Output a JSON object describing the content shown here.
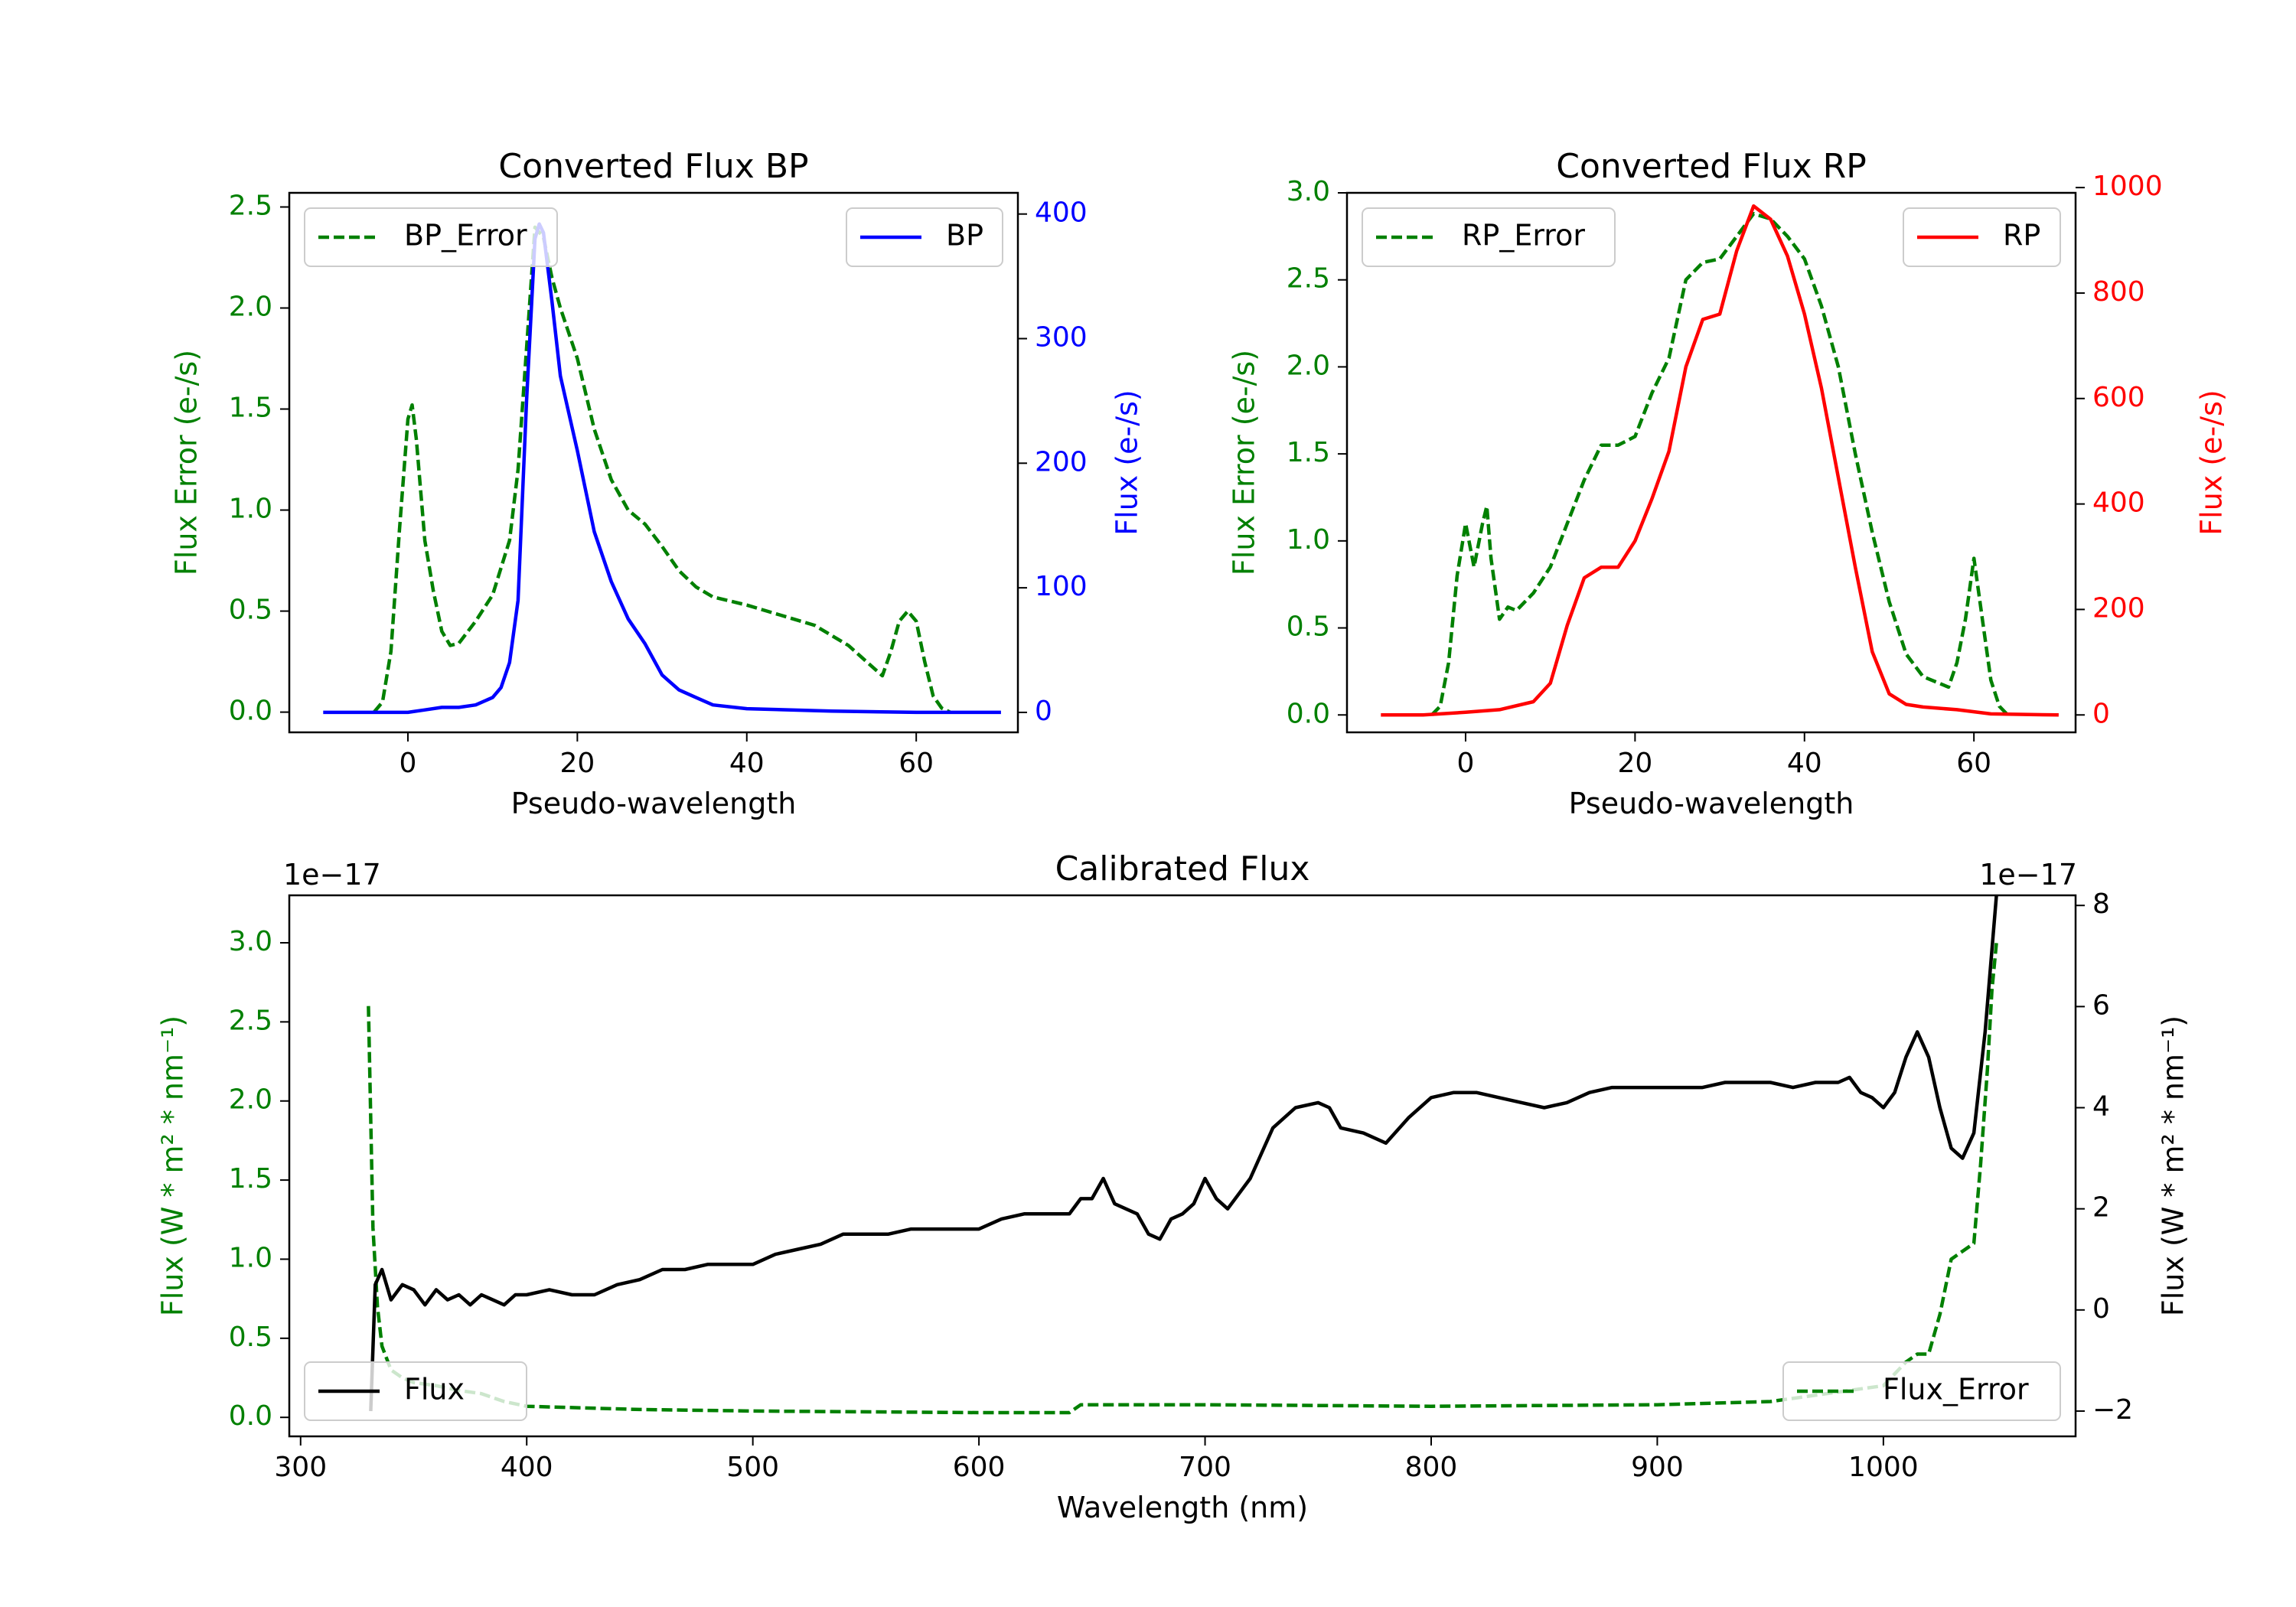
{
  "colors": {
    "error": "#008000",
    "bp": "#0000ff",
    "rp": "#ff0000",
    "flux": "#000000"
  },
  "chart_data": [
    {
      "type": "line",
      "title": "Converted Flux BP",
      "xlabel": "Pseudo-wavelength",
      "ylabel_left": "Flux Error (e-/s)",
      "ylabel_right": "Flux (e-/s)",
      "xlim": [
        -14,
        72
      ],
      "ylim_left": [
        -0.1,
        2.57
      ],
      "ylim_right": [
        -16,
        417
      ],
      "xticks": [
        0,
        20,
        40,
        60
      ],
      "xtick_labels": [
        "0",
        "20",
        "40",
        "60"
      ],
      "yticks_left": [
        0.0,
        0.5,
        1.0,
        1.5,
        2.0,
        2.5
      ],
      "ytick_labels_left": [
        "0.0",
        "0.5",
        "1.0",
        "1.5",
        "2.0",
        "2.5"
      ],
      "yticks_right": [
        0,
        100,
        200,
        300,
        400
      ],
      "ytick_labels_right": [
        "0",
        "100",
        "200",
        "300",
        "400"
      ],
      "series": [
        {
          "name": "BP_Error",
          "axis": "left",
          "style": "dashed",
          "color": "#008000",
          "x": [
            -4,
            -3,
            -2,
            -1,
            0,
            0.5,
            1,
            2,
            3,
            4,
            5,
            6,
            8,
            10,
            12,
            13,
            14,
            15,
            16,
            17,
            18,
            20,
            22,
            24,
            26,
            28,
            30,
            32,
            34,
            36,
            40,
            44,
            48,
            52,
            56,
            57,
            58,
            59,
            60,
            61,
            62,
            63,
            64
          ],
          "y": [
            0.0,
            0.05,
            0.3,
            0.9,
            1.45,
            1.52,
            1.35,
            0.85,
            0.6,
            0.4,
            0.33,
            0.34,
            0.45,
            0.58,
            0.85,
            1.2,
            1.8,
            2.4,
            2.35,
            2.15,
            2.0,
            1.75,
            1.4,
            1.15,
            1.0,
            0.93,
            0.82,
            0.7,
            0.62,
            0.57,
            0.53,
            0.48,
            0.43,
            0.33,
            0.18,
            0.3,
            0.45,
            0.5,
            0.45,
            0.25,
            0.08,
            0.02,
            0.0
          ]
        },
        {
          "name": "BP",
          "axis": "right",
          "style": "solid",
          "color": "#0000ff",
          "x": [
            -10,
            -5,
            0,
            2,
            4,
            6,
            8,
            10,
            11,
            12,
            13,
            14,
            15,
            15.5,
            16,
            17,
            18,
            20,
            22,
            24,
            26,
            28,
            30,
            32,
            34,
            36,
            40,
            50,
            60,
            70
          ],
          "y": [
            0,
            0,
            0,
            2,
            4,
            4,
            6,
            12,
            20,
            40,
            90,
            250,
            380,
            392,
            385,
            330,
            270,
            210,
            145,
            105,
            75,
            55,
            30,
            18,
            12,
            6,
            3,
            1,
            0,
            0
          ]
        }
      ],
      "legends": [
        {
          "label": "BP_Error",
          "placement": "upper left"
        },
        {
          "label": "BP",
          "placement": "upper right"
        }
      ]
    },
    {
      "type": "line",
      "title": "Converted Flux RP",
      "xlabel": "Pseudo-wavelength",
      "ylabel_left": "Flux Error (e-/s)",
      "ylabel_right": "Flux (e-/s)",
      "xlim": [
        -14,
        72
      ],
      "ylim_left": [
        -0.1,
        3.0
      ],
      "ylim_right": [
        -33,
        990
      ],
      "xticks": [
        0,
        20,
        40,
        60
      ],
      "xtick_labels": [
        "0",
        "20",
        "40",
        "60"
      ],
      "yticks_left": [
        0.0,
        0.5,
        1.0,
        1.5,
        2.0,
        2.5,
        3.0
      ],
      "ytick_labels_left": [
        "0.0",
        "0.5",
        "1.0",
        "1.5",
        "2.0",
        "2.5",
        "3.0"
      ],
      "yticks_right": [
        0,
        200,
        400,
        600,
        800,
        1000
      ],
      "ytick_labels_right": [
        "0",
        "200",
        "400",
        "600",
        "800",
        "1000"
      ],
      "series": [
        {
          "name": "RP_Error",
          "axis": "left",
          "style": "dashed",
          "color": "#008000",
          "x": [
            -4,
            -3,
            -2,
            -1,
            0,
            1,
            2,
            2.5,
            3,
            4,
            5,
            6,
            8,
            10,
            12,
            14,
            16,
            18,
            20,
            22,
            24,
            26,
            28,
            30,
            32,
            34,
            36,
            38,
            40,
            42,
            44,
            46,
            48,
            50,
            52,
            54,
            56,
            57,
            58,
            59,
            60,
            61,
            62,
            63,
            64
          ],
          "y": [
            0.0,
            0.05,
            0.3,
            0.8,
            1.1,
            0.85,
            1.1,
            1.2,
            0.9,
            0.55,
            0.62,
            0.6,
            0.7,
            0.85,
            1.1,
            1.35,
            1.55,
            1.55,
            1.6,
            1.85,
            2.05,
            2.5,
            2.6,
            2.62,
            2.75,
            2.88,
            2.85,
            2.75,
            2.62,
            2.35,
            2.0,
            1.5,
            1.05,
            0.65,
            0.35,
            0.22,
            0.18,
            0.16,
            0.3,
            0.55,
            0.9,
            0.55,
            0.2,
            0.05,
            0.0
          ]
        },
        {
          "name": "RP",
          "axis": "right",
          "style": "solid",
          "color": "#ff0000",
          "x": [
            -10,
            -5,
            0,
            4,
            8,
            10,
            12,
            14,
            16,
            18,
            20,
            22,
            24,
            26,
            28,
            30,
            32,
            34,
            36,
            38,
            40,
            42,
            44,
            46,
            48,
            50,
            52,
            54,
            58,
            62,
            70
          ],
          "y": [
            0,
            0,
            5,
            10,
            25,
            60,
            170,
            260,
            280,
            280,
            330,
            410,
            500,
            660,
            750,
            760,
            880,
            965,
            940,
            870,
            760,
            620,
            450,
            280,
            120,
            40,
            20,
            15,
            10,
            2,
            0
          ]
        }
      ],
      "legends": [
        {
          "label": "RP_Error",
          "placement": "upper left"
        },
        {
          "label": "RP",
          "placement": "upper right"
        }
      ]
    },
    {
      "type": "line",
      "title": "Calibrated Flux",
      "xlabel": "Wavelength (nm)",
      "ylabel_left": "Flux (W * m² * nm⁻¹)",
      "ylabel_right": "Flux (W * m² * nm⁻¹)",
      "offset_left": "1e−17",
      "offset_right": "1e−17",
      "xlim": [
        295,
        1085
      ],
      "ylim_left": [
        -0.12,
        3.3
      ],
      "ylim_right": [
        -2.5,
        8.2
      ],
      "xticks": [
        300,
        400,
        500,
        600,
        700,
        800,
        900,
        1000
      ],
      "xtick_labels": [
        "300",
        "400",
        "500",
        "600",
        "700",
        "800",
        "900",
        "1000"
      ],
      "yticks_left": [
        0.0,
        0.5,
        1.0,
        1.5,
        2.0,
        2.5,
        3.0
      ],
      "ytick_labels_left": [
        "0.0",
        "0.5",
        "1.0",
        "1.5",
        "2.0",
        "2.5",
        "3.0"
      ],
      "yticks_right": [
        -2,
        0,
        2,
        4,
        6,
        8
      ],
      "ytick_labels_right": [
        "−2",
        "0",
        "2",
        "4",
        "6",
        "8"
      ],
      "series": [
        {
          "name": "Flux_Error",
          "axis": "left",
          "style": "dashed",
          "color": "#008000",
          "x": [
            330,
            332,
            334,
            336,
            340,
            345,
            350,
            360,
            370,
            380,
            390,
            400,
            450,
            500,
            600,
            640,
            645,
            700,
            800,
            900,
            950,
            1000,
            1010,
            1015,
            1020,
            1025,
            1030,
            1035,
            1040,
            1043,
            1046,
            1048,
            1050
          ],
          "y": [
            2.6,
            1.2,
            0.7,
            0.45,
            0.3,
            0.25,
            0.22,
            0.2,
            0.17,
            0.15,
            0.1,
            0.07,
            0.05,
            0.04,
            0.03,
            0.03,
            0.08,
            0.08,
            0.07,
            0.08,
            0.1,
            0.2,
            0.35,
            0.4,
            0.4,
            0.65,
            1.0,
            1.05,
            1.1,
            1.6,
            2.2,
            2.7,
            3.0
          ]
        },
        {
          "name": "Flux",
          "axis": "right",
          "style": "solid",
          "color": "#000000",
          "x": [
            331,
            333,
            336,
            340,
            345,
            350,
            355,
            360,
            365,
            370,
            375,
            380,
            385,
            390,
            395,
            400,
            410,
            420,
            430,
            440,
            450,
            460,
            470,
            480,
            490,
            500,
            510,
            520,
            530,
            540,
            550,
            560,
            570,
            580,
            590,
            600,
            610,
            620,
            630,
            640,
            645,
            650,
            655,
            660,
            665,
            670,
            675,
            680,
            685,
            690,
            695,
            700,
            705,
            710,
            715,
            720,
            730,
            740,
            750,
            755,
            760,
            770,
            780,
            790,
            800,
            810,
            820,
            830,
            840,
            850,
            860,
            870,
            880,
            890,
            900,
            910,
            920,
            930,
            940,
            950,
            960,
            970,
            980,
            985,
            990,
            995,
            1000,
            1005,
            1010,
            1015,
            1020,
            1025,
            1030,
            1035,
            1040,
            1045,
            1050
          ],
          "y": [
            -2.0,
            0.5,
            0.8,
            0.2,
            0.5,
            0.4,
            0.1,
            0.4,
            0.2,
            0.3,
            0.1,
            0.3,
            0.2,
            0.1,
            0.3,
            0.3,
            0.4,
            0.3,
            0.3,
            0.5,
            0.6,
            0.8,
            0.8,
            0.9,
            0.9,
            0.9,
            1.1,
            1.2,
            1.3,
            1.5,
            1.5,
            1.5,
            1.6,
            1.6,
            1.6,
            1.6,
            1.8,
            1.9,
            1.9,
            1.9,
            2.2,
            2.2,
            2.6,
            2.1,
            2.0,
            1.9,
            1.5,
            1.4,
            1.8,
            1.9,
            2.1,
            2.6,
            2.2,
            2.0,
            2.3,
            2.6,
            3.6,
            4.0,
            4.1,
            4.0,
            3.6,
            3.5,
            3.3,
            3.8,
            4.2,
            4.3,
            4.3,
            4.2,
            4.1,
            4.0,
            4.1,
            4.3,
            4.4,
            4.4,
            4.4,
            4.4,
            4.4,
            4.5,
            4.5,
            4.5,
            4.4,
            4.5,
            4.5,
            4.6,
            4.3,
            4.2,
            4.0,
            4.3,
            5.0,
            5.5,
            5.0,
            4.0,
            3.2,
            3.0,
            3.5,
            5.5,
            8.2
          ]
        }
      ],
      "legends": [
        {
          "label": "Flux",
          "placement": "lower left"
        },
        {
          "label": "Flux_Error",
          "placement": "lower right"
        }
      ]
    }
  ]
}
